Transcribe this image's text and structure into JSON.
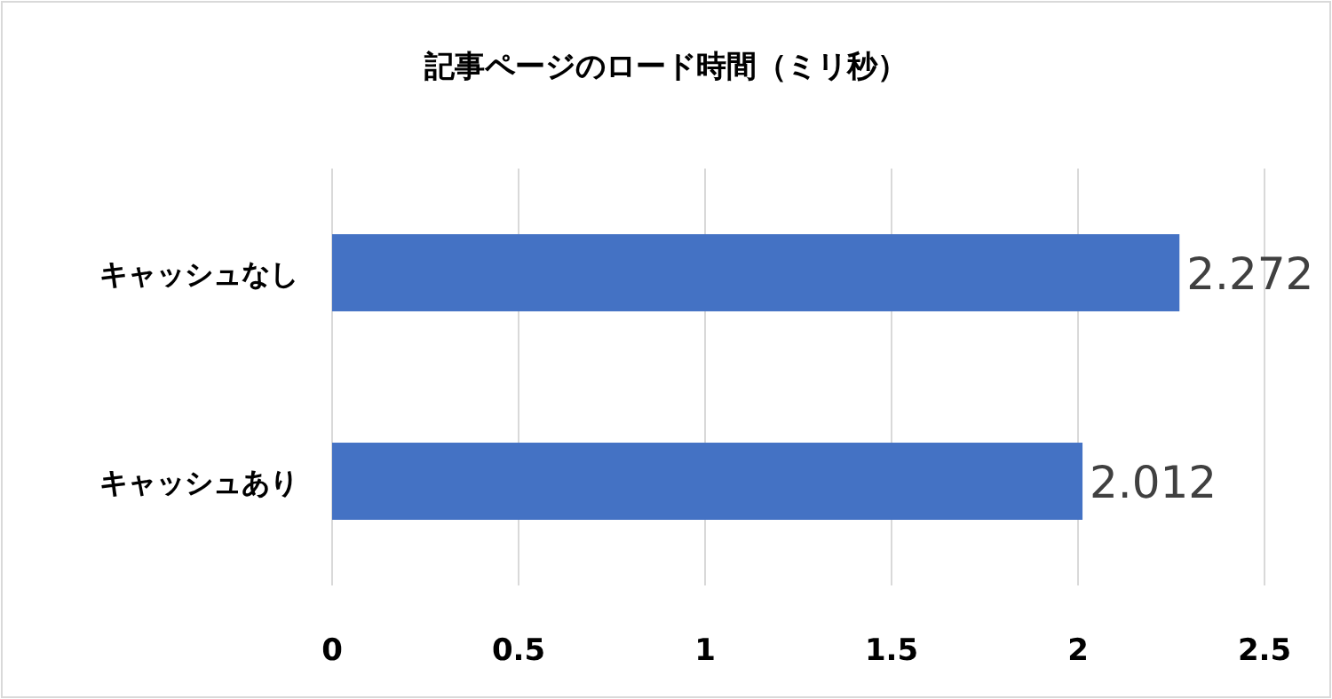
{
  "chart_data": {
    "type": "bar",
    "orientation": "horizontal",
    "title": "記事ページのロード時間（ミリ秒）",
    "categories": [
      "キャッシュなし",
      "キャッシュあり"
    ],
    "values": [
      2.272,
      2.012
    ],
    "color": "#4472c4",
    "xlim": [
      0,
      2.5
    ],
    "xticks": [
      0,
      0.5,
      1,
      1.5,
      2,
      2.5
    ],
    "grid": "x",
    "data_labels": true
  }
}
